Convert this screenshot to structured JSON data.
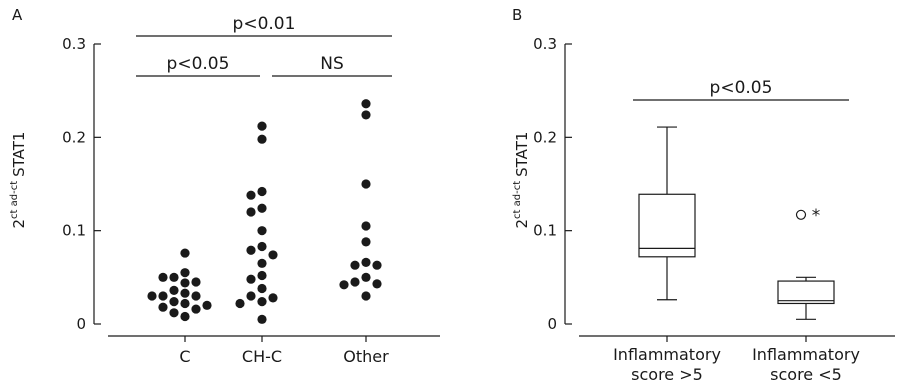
{
  "chart_data": [
    {
      "panel_label": "A",
      "type": "scatter",
      "ylabel_base": "2",
      "ylabel_sup": "ct ad-ct",
      "ylabel_name": "STAT1",
      "ylim": [
        0,
        0.3
      ],
      "yticks": [
        "0",
        "0.1",
        "0.2",
        "0.3"
      ],
      "categories": [
        "C",
        "CH-C",
        "Other"
      ],
      "series": [
        {
          "category": "C",
          "values": [
            0.055,
            0.05,
            0.045,
            0.044,
            0.036,
            0.033,
            0.03,
            0.03,
            0.024,
            0.022,
            0.02,
            0.016,
            0.012,
            0.008,
            0.076,
            0.05,
            0.03,
            0.018
          ]
        },
        {
          "category": "CH-C",
          "values": [
            0.212,
            0.198,
            0.142,
            0.138,
            0.124,
            0.12,
            0.1,
            0.083,
            0.079,
            0.074,
            0.065,
            0.052,
            0.048,
            0.038,
            0.03,
            0.028,
            0.024,
            0.022,
            0.005
          ]
        },
        {
          "category": "Other",
          "values": [
            0.236,
            0.224,
            0.15,
            0.105,
            0.088,
            0.066,
            0.063,
            0.063,
            0.05,
            0.045,
            0.043,
            0.042,
            0.03
          ]
        }
      ],
      "annotations": [
        {
          "text": "p<0.01",
          "from": "C",
          "to": "Other"
        },
        {
          "text": "p<0.05",
          "from": "C",
          "to": "CH-C"
        },
        {
          "text": "NS",
          "from": "CH-C",
          "to": "Other"
        }
      ]
    },
    {
      "panel_label": "B",
      "type": "box",
      "ylabel_base": "2",
      "ylabel_sup": "ct ad-ct",
      "ylabel_name": "STAT1",
      "ylim": [
        0,
        0.3
      ],
      "yticks": [
        "0",
        "0.1",
        "0.2",
        "0.3"
      ],
      "categories": [
        {
          "line1": "Inflammatory",
          "line2": "score >5"
        },
        {
          "line1": "Inflammatory",
          "line2": "score <5"
        }
      ],
      "boxes": [
        {
          "whisker_low": 0.026,
          "q1": 0.072,
          "median": 0.081,
          "q3": 0.139,
          "whisker_high": 0.211,
          "outliers": [],
          "extremes": []
        },
        {
          "whisker_low": 0.005,
          "q1": 0.022,
          "median": 0.025,
          "q3": 0.046,
          "whisker_high": 0.05,
          "outliers": [
            0.117
          ],
          "extremes": [
            0.117
          ]
        }
      ],
      "annotations": [
        {
          "text": "p<0.05",
          "from": 0,
          "to": 1
        }
      ]
    }
  ]
}
